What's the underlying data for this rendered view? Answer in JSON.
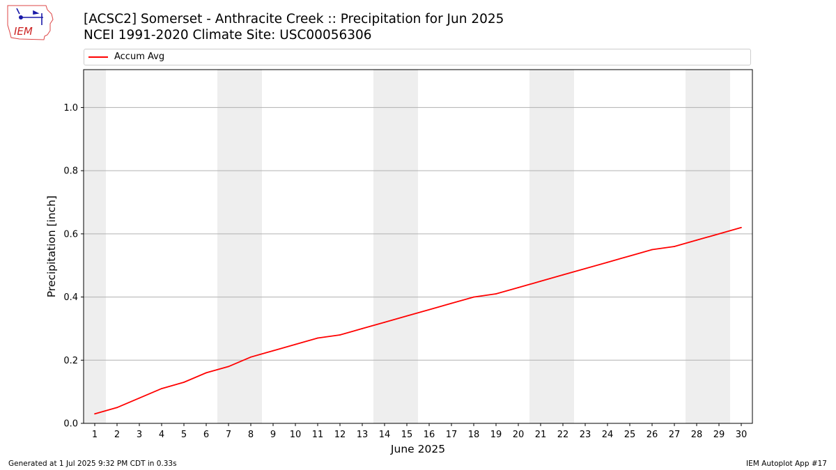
{
  "header": {
    "title_line1": "[ACSC2] Somerset - Anthracite Creek :: Precipitation for Jun 2025",
    "title_line2": "NCEI 1991-2020 Climate Site: USC00056306",
    "logo_text": "IEM"
  },
  "footer": {
    "generated": "Generated at 1 Jul 2025 9:32 PM CDT in 0.33s",
    "app": "IEM Autoplot App #17"
  },
  "chart_data": {
    "type": "line",
    "xlabel": "June 2025",
    "ylabel": "Precipitation [inch]",
    "xlim": [
      0.5,
      30.5
    ],
    "ylim": [
      0,
      1.12
    ],
    "yticks": [
      0.0,
      0.2,
      0.4,
      0.6,
      0.8,
      1.0
    ],
    "ytick_labels": [
      "0.0",
      "0.2",
      "0.4",
      "0.6",
      "0.8",
      "1.0"
    ],
    "x": [
      1,
      2,
      3,
      4,
      5,
      6,
      7,
      8,
      9,
      10,
      11,
      12,
      13,
      14,
      15,
      16,
      17,
      18,
      19,
      20,
      21,
      22,
      23,
      24,
      25,
      26,
      27,
      28,
      29,
      30
    ],
    "grid": "horizontal",
    "legend": "top",
    "weekend_shading": [
      [
        0.5,
        1.5
      ],
      [
        6.5,
        8.5
      ],
      [
        13.5,
        15.5
      ],
      [
        20.5,
        22.5
      ],
      [
        27.5,
        29.5
      ]
    ],
    "colors": {
      "line": "#ff0000",
      "weekend": "#eeeeee",
      "grid": "#b0b0b0"
    },
    "series": [
      {
        "name": "Accum Avg",
        "values": [
          0.03,
          0.05,
          0.08,
          0.11,
          0.13,
          0.16,
          0.18,
          0.21,
          0.23,
          0.25,
          0.27,
          0.28,
          0.3,
          0.32,
          0.34,
          0.36,
          0.38,
          0.4,
          0.41,
          0.43,
          0.45,
          0.47,
          0.49,
          0.51,
          0.53,
          0.55,
          0.56,
          0.58,
          0.6,
          0.62
        ]
      }
    ]
  }
}
